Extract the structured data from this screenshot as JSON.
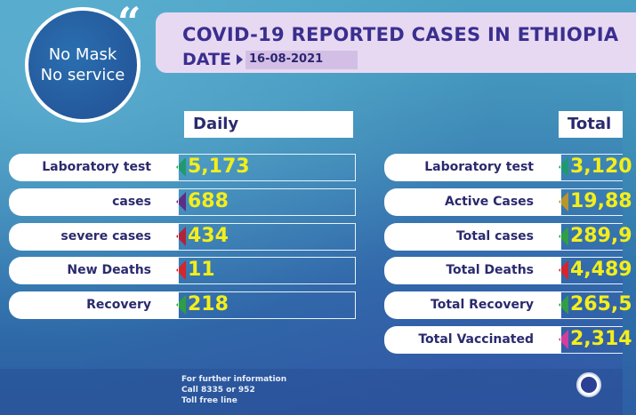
{
  "badge": {
    "line1": "No Mask",
    "line2": "No service"
  },
  "header": {
    "title": "COVID-19 REPORTED CASES IN ETHIOPIA",
    "date_label": "DATE",
    "date_value": "16-08-2021"
  },
  "daily": {
    "heading": "Daily",
    "rows": [
      {
        "label": "Laboratory test",
        "value": "5,173",
        "accent": "#1f9a6f"
      },
      {
        "label": "cases",
        "value": "688",
        "accent": "#5a2f86"
      },
      {
        "label": "severe cases",
        "value": "434",
        "accent": "#b0243a"
      },
      {
        "label": "New Deaths",
        "value": "11",
        "accent": "#d3262d"
      },
      {
        "label": "Recovery",
        "value": "218",
        "accent": "#2f9e44"
      }
    ]
  },
  "total": {
    "heading": "Total",
    "rows": [
      {
        "label": "Laboratory test",
        "value": "3,120",
        "accent": "#1f9a6f"
      },
      {
        "label": "Active Cases",
        "value": "19,88",
        "accent": "#b8962b"
      },
      {
        "label": "Total cases",
        "value": "289,9",
        "accent": "#2f9e44"
      },
      {
        "label": "Total Deaths",
        "value": "4,489",
        "accent": "#d3262d"
      },
      {
        "label": "Total Recovery",
        "value": "265,5",
        "accent": "#2f9e44"
      },
      {
        "label": "Total Vaccinated",
        "value": "2,314",
        "accent": "#d13f9b"
      }
    ]
  },
  "footer": {
    "line1": "For further information",
    "line2": "Call 8335 or 952",
    "line3": "Toll free line"
  }
}
